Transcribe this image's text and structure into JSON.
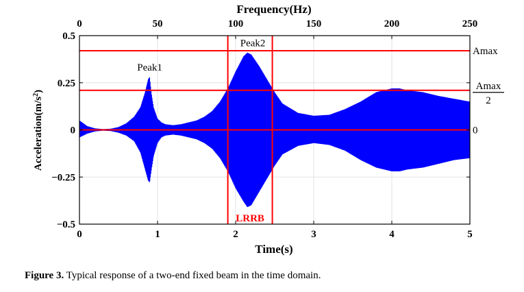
{
  "figure": {
    "caption_label": "Figure 3.",
    "caption_text": " Typical response of a two-end fixed beam in the time domain."
  },
  "chart_data": {
    "type": "area",
    "title": "",
    "xlabel": "Time(s)",
    "ylabel": "Acceleration(m/s²)",
    "top_xlabel": "Frequency(Hz)",
    "xlim": [
      0,
      5
    ],
    "ylim": [
      -0.5,
      0.5
    ],
    "x_ticks": [
      0,
      1,
      2,
      3,
      4,
      5
    ],
    "y_ticks": [
      {
        "value": 0.5,
        "label": "0.5"
      },
      {
        "value": 0.25,
        "label": "0.25"
      },
      {
        "value": 0,
        "label": "0"
      },
      {
        "value": -0.25,
        "label": "−0.25"
      },
      {
        "value": -0.5,
        "label": "−0.5"
      }
    ],
    "top_ticks": [
      0,
      50,
      100,
      150,
      200,
      250
    ],
    "top_xlim": [
      0,
      250
    ],
    "grid": true,
    "series": [
      {
        "color": "#0000ff",
        "envelope_upper": [
          [
            0,
            0.05
          ],
          [
            0.1,
            0.02
          ],
          [
            0.2,
            0.008
          ],
          [
            0.3,
            0.004
          ],
          [
            0.4,
            0.006
          ],
          [
            0.5,
            0.015
          ],
          [
            0.6,
            0.035
          ],
          [
            0.7,
            0.07
          ],
          [
            0.78,
            0.12
          ],
          [
            0.84,
            0.2
          ],
          [
            0.88,
            0.27
          ],
          [
            0.9,
            0.28
          ],
          [
            0.92,
            0.2
          ],
          [
            0.95,
            0.12
          ],
          [
            1.0,
            0.06
          ],
          [
            1.05,
            0.04
          ],
          [
            1.1,
            0.03
          ],
          [
            1.2,
            0.025
          ],
          [
            1.3,
            0.03
          ],
          [
            1.4,
            0.04
          ],
          [
            1.5,
            0.05
          ],
          [
            1.6,
            0.07
          ],
          [
            1.7,
            0.1
          ],
          [
            1.8,
            0.15
          ],
          [
            1.9,
            0.22
          ],
          [
            2.0,
            0.31
          ],
          [
            2.1,
            0.39
          ],
          [
            2.15,
            0.41
          ],
          [
            2.2,
            0.4
          ],
          [
            2.3,
            0.34
          ],
          [
            2.4,
            0.27
          ],
          [
            2.5,
            0.2
          ],
          [
            2.6,
            0.14
          ],
          [
            2.8,
            0.09
          ],
          [
            3.0,
            0.075
          ],
          [
            3.2,
            0.08
          ],
          [
            3.4,
            0.11
          ],
          [
            3.6,
            0.15
          ],
          [
            3.8,
            0.2
          ],
          [
            4.0,
            0.22
          ],
          [
            4.1,
            0.22
          ],
          [
            4.2,
            0.21
          ],
          [
            4.4,
            0.2
          ],
          [
            4.6,
            0.18
          ],
          [
            4.8,
            0.165
          ],
          [
            5.0,
            0.15
          ]
        ],
        "envelope_lower": [
          [
            0,
            -0.04
          ],
          [
            0.1,
            -0.02
          ],
          [
            0.2,
            -0.008
          ],
          [
            0.3,
            -0.004
          ],
          [
            0.4,
            -0.006
          ],
          [
            0.5,
            -0.015
          ],
          [
            0.6,
            -0.03
          ],
          [
            0.7,
            -0.06
          ],
          [
            0.78,
            -0.12
          ],
          [
            0.84,
            -0.21
          ],
          [
            0.88,
            -0.27
          ],
          [
            0.9,
            -0.28
          ],
          [
            0.92,
            -0.22
          ],
          [
            0.95,
            -0.14
          ],
          [
            1.0,
            -0.07
          ],
          [
            1.05,
            -0.04
          ],
          [
            1.1,
            -0.03
          ],
          [
            1.2,
            -0.025
          ],
          [
            1.3,
            -0.03
          ],
          [
            1.4,
            -0.04
          ],
          [
            1.5,
            -0.05
          ],
          [
            1.6,
            -0.07
          ],
          [
            1.7,
            -0.1
          ],
          [
            1.8,
            -0.15
          ],
          [
            1.9,
            -0.22
          ],
          [
            2.0,
            -0.31
          ],
          [
            2.1,
            -0.38
          ],
          [
            2.15,
            -0.41
          ],
          [
            2.2,
            -0.4
          ],
          [
            2.3,
            -0.33
          ],
          [
            2.4,
            -0.26
          ],
          [
            2.5,
            -0.19
          ],
          [
            2.6,
            -0.13
          ],
          [
            2.8,
            -0.085
          ],
          [
            3.0,
            -0.07
          ],
          [
            3.2,
            -0.08
          ],
          [
            3.4,
            -0.11
          ],
          [
            3.6,
            -0.16
          ],
          [
            3.8,
            -0.2
          ],
          [
            4.0,
            -0.22
          ],
          [
            4.1,
            -0.22
          ],
          [
            4.2,
            -0.21
          ],
          [
            4.4,
            -0.2
          ],
          [
            4.6,
            -0.18
          ],
          [
            4.8,
            -0.16
          ],
          [
            5.0,
            -0.15
          ]
        ]
      }
    ],
    "reference_lines": {
      "color": "#ff0000",
      "horizontal": [
        {
          "y": 0.42,
          "label": "Amax"
        },
        {
          "y": 0.21,
          "label_num": "Amax",
          "label_den": "2"
        },
        {
          "y": 0,
          "label": "0"
        }
      ],
      "vertical": [
        1.9,
        2.47
      ],
      "band_label": "LRRB"
    },
    "annotations": [
      {
        "text": "Peak1",
        "x": 0.9,
        "y": 0.3
      },
      {
        "text": "Peak2",
        "x": 2.15,
        "y": 0.43
      }
    ]
  }
}
